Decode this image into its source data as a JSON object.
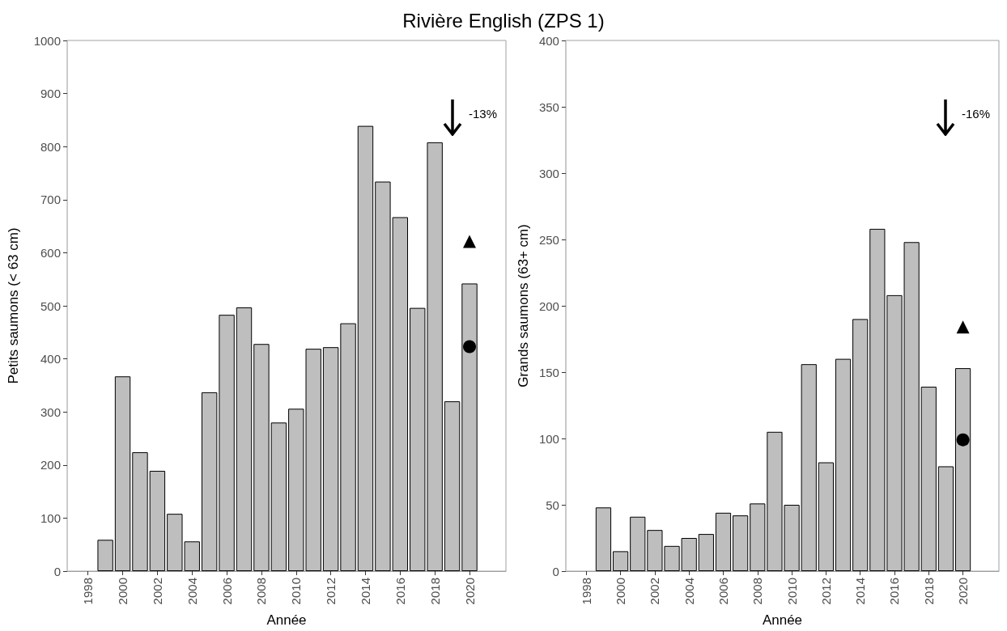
{
  "chart_data": [
    {
      "type": "bar",
      "title": "Rivière English (ZPS 1)",
      "xlabel": "Année",
      "ylabel": "Petits saumons (< 63 cm)",
      "x": [
        1999,
        2000,
        2001,
        2002,
        2003,
        2004,
        2005,
        2006,
        2007,
        2008,
        2009,
        2010,
        2011,
        2012,
        2013,
        2014,
        2015,
        2016,
        2017,
        2018,
        2019,
        2020
      ],
      "series": [
        {
          "color": "#bebebe",
          "values": [
            59,
            367,
            224,
            189,
            108,
            56,
            337,
            483,
            497,
            428,
            280,
            306,
            419,
            422,
            467,
            839,
            734,
            667,
            496,
            808,
            320,
            542
          ]
        },
        {
          "type": "scatter",
          "marker": "triangle",
          "color": "#000000",
          "values": [
            null,
            null,
            null,
            null,
            null,
            null,
            null,
            null,
            null,
            null,
            null,
            null,
            null,
            null,
            null,
            null,
            null,
            null,
            null,
            null,
            null,
            621
          ]
        },
        {
          "type": "scatter",
          "marker": "circle",
          "color": "#000000",
          "values": [
            null,
            null,
            null,
            null,
            null,
            null,
            null,
            null,
            null,
            null,
            null,
            null,
            null,
            null,
            null,
            null,
            null,
            null,
            null,
            null,
            null,
            423
          ]
        }
      ],
      "xlim": [
        1996.8,
        2022.1
      ],
      "xticks": [
        1998,
        2000,
        2002,
        2004,
        2006,
        2008,
        2010,
        2012,
        2014,
        2016,
        2018,
        2020
      ],
      "ylim": [
        0,
        1000
      ],
      "yticks": [
        0,
        100,
        200,
        300,
        400,
        500,
        600,
        700,
        800,
        900,
        1000
      ],
      "grid": false,
      "annotations": [
        "-13%"
      ]
    },
    {
      "type": "bar",
      "xlabel": "Année",
      "ylabel": "Grands saumons (63+ cm)",
      "x": [
        1999,
        2000,
        2001,
        2002,
        2003,
        2004,
        2005,
        2006,
        2007,
        2008,
        2009,
        2010,
        2011,
        2012,
        2013,
        2014,
        2015,
        2016,
        2017,
        2018,
        2019,
        2020
      ],
      "series": [
        {
          "color": "#bebebe",
          "values": [
            48,
            15,
            41,
            31,
            19,
            25,
            28,
            44,
            42,
            51,
            105,
            50,
            156,
            82,
            160,
            190,
            258,
            208,
            248,
            139,
            79,
            153
          ]
        },
        {
          "type": "scatter",
          "marker": "triangle",
          "color": "#000000",
          "values": [
            null,
            null,
            null,
            null,
            null,
            null,
            null,
            null,
            null,
            null,
            null,
            null,
            null,
            null,
            null,
            null,
            null,
            null,
            null,
            null,
            null,
            184
          ]
        },
        {
          "type": "scatter",
          "marker": "circle",
          "color": "#000000",
          "values": [
            null,
            null,
            null,
            null,
            null,
            null,
            null,
            null,
            null,
            null,
            null,
            null,
            null,
            null,
            null,
            null,
            null,
            null,
            null,
            null,
            null,
            99
          ]
        }
      ],
      "xlim": [
        1996.8,
        2022.1
      ],
      "xticks": [
        1998,
        2000,
        2002,
        2004,
        2006,
        2008,
        2010,
        2012,
        2014,
        2016,
        2018,
        2020
      ],
      "ylim": [
        0,
        400
      ],
      "yticks": [
        0,
        50,
        100,
        150,
        200,
        250,
        300,
        350,
        400
      ],
      "grid": false,
      "annotations": [
        "-16%"
      ]
    }
  ]
}
